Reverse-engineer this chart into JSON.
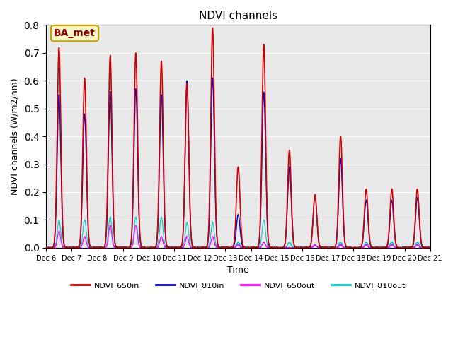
{
  "title": "NDVI channels",
  "xlabel": "Time",
  "ylabel": "NDVI channels (W/m2/nm)",
  "ylim": [
    0.0,
    0.8
  ],
  "background_color": "#e8e8e8",
  "annotation_text": "BA_met",
  "annotation_color": "#8B0000",
  "annotation_bg": "#f5f5c8",
  "annotation_border": "#c8a000",
  "colors": {
    "NDVI_650in": "#cc0000",
    "NDVI_810in": "#0000cc",
    "NDVI_650out": "#ff00ff",
    "NDVI_810out": "#00cccc"
  },
  "day_peaks_650in": [
    0.72,
    0.61,
    0.69,
    0.7,
    0.67,
    0.59,
    0.79,
    0.29,
    0.73,
    0.35,
    0.19,
    0.4,
    0.21,
    0.21,
    0.21
  ],
  "day_peaks_810in": [
    0.55,
    0.48,
    0.56,
    0.57,
    0.55,
    0.6,
    0.61,
    0.12,
    0.56,
    0.29,
    0.19,
    0.32,
    0.17,
    0.17,
    0.18
  ],
  "day_peaks_650out": [
    0.06,
    0.04,
    0.08,
    0.08,
    0.04,
    0.04,
    0.04,
    0.01,
    0.02,
    0.0,
    0.01,
    0.01,
    0.01,
    0.01,
    0.01
  ],
  "day_peaks_810out": [
    0.1,
    0.1,
    0.11,
    0.11,
    0.11,
    0.09,
    0.09,
    0.02,
    0.1,
    0.02,
    0.01,
    0.02,
    0.02,
    0.02,
    0.02
  ],
  "tick_labels": [
    "Dec 6",
    "Dec 7",
    "Dec 8",
    "Dec 9",
    "Dec 10",
    "Dec 11",
    "Dec 12",
    "Dec 13",
    "Dec 14",
    "Dec 15",
    "Dec 16",
    "Dec 17",
    "Dec 18",
    "Dec 19",
    "Dec 20",
    "Dec 21"
  ],
  "num_days": 15,
  "points_per_day": 200
}
